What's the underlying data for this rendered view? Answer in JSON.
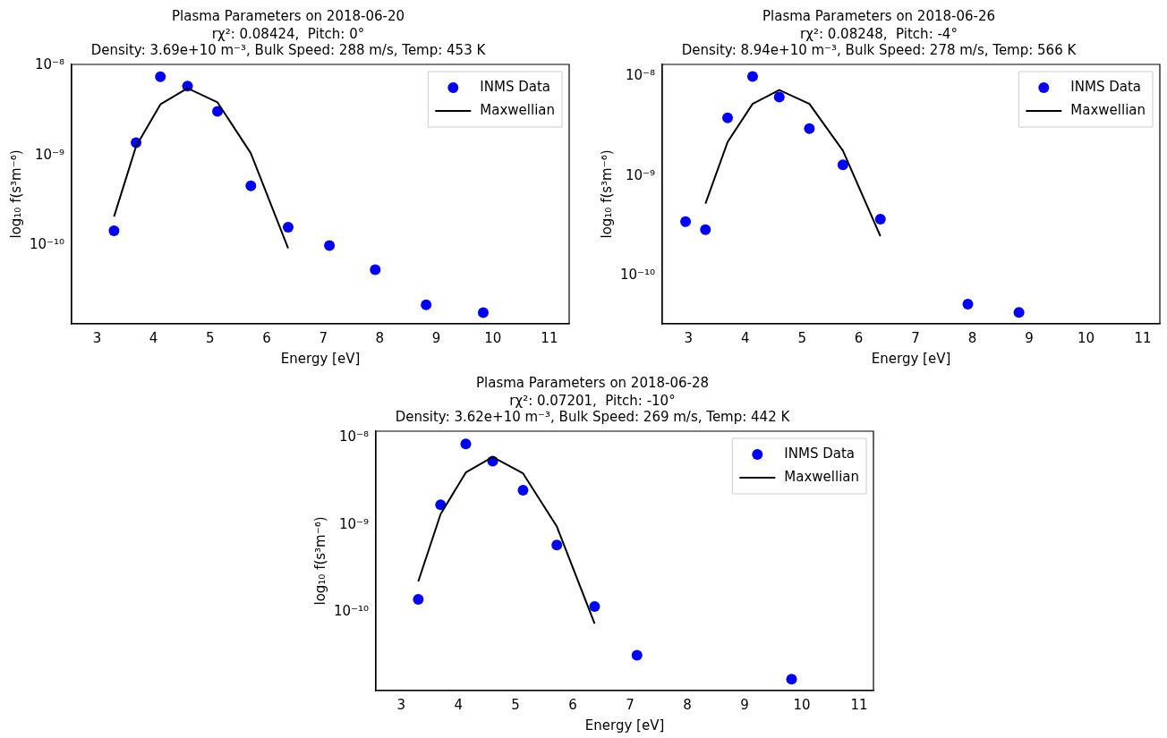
{
  "chart_data": [
    {
      "type": "scatter",
      "title": "Plasma Parameters on 2018-06-20",
      "subtitle": "rχ²: 0.08424,  Pitch: 0°\nDensity: 3.69e+10 m⁻³, Bulk Speed: 288 m/s, Temp: 453 K",
      "xlabel": "Energy [eV]",
      "ylabel": "log₁₀ f(s³m⁻⁶)",
      "log": "y",
      "legend": "top right",
      "grid": false,
      "xlim": [
        2.55,
        11.35
      ],
      "xticks": [
        3,
        4,
        5,
        6,
        7,
        8,
        9,
        10,
        11
      ],
      "ylim": [
        1.35e-11,
        1.03e-08
      ],
      "yticks": [
        {
          "value": 1e-10,
          "label": "10⁻¹⁰"
        },
        {
          "value": 1e-09,
          "label": "10⁻⁹"
        },
        {
          "value": 1e-08,
          "label": "10⁻⁸"
        }
      ],
      "series": [
        {
          "name": "INMS Data",
          "marker": "circle",
          "color": "#0000ff",
          "x": [
            3.3,
            3.69,
            4.12,
            4.6,
            5.13,
            5.72,
            6.38,
            7.11,
            7.92,
            8.82,
            9.83
          ],
          "values": [
            1.46e-10,
            1.39e-09,
            7.5e-09,
            5.9e-09,
            3.1e-09,
            4.6e-10,
            1.6e-10,
            1e-10,
            5.4e-11,
            2.2e-11,
            1.8e-11
          ]
        },
        {
          "name": "Maxwellian",
          "type": "line",
          "marker": "none",
          "color": "#000000",
          "x": [
            3.3,
            3.69,
            4.12,
            4.6,
            5.13,
            5.72,
            6.38
          ],
          "values": [
            2.1e-10,
            1.27e-09,
            3.7e-09,
            5.6e-09,
            3.9e-09,
            1.06e-09,
            9.3e-11
          ]
        }
      ]
    },
    {
      "type": "scatter",
      "title": "Plasma Parameters on 2018-06-26",
      "subtitle": "rχ²: 0.08248,  Pitch: -4°\nDensity: 8.94e+10 m⁻³, Bulk Speed: 278 m/s, Temp: 566 K",
      "xlabel": "Energy [eV]",
      "ylabel": "log₁₀ f(s³m⁻⁶)",
      "log": "y",
      "legend": "top right",
      "grid": false,
      "xlim": [
        2.54,
        11.3
      ],
      "xticks": [
        3,
        4,
        5,
        6,
        7,
        8,
        9,
        10,
        11
      ],
      "ylim": [
        3.3e-11,
        1.32e-08
      ],
      "yticks": [
        {
          "value": 1e-10,
          "label": "10⁻¹⁰"
        },
        {
          "value": 1e-09,
          "label": "10⁻⁹"
        },
        {
          "value": 1e-08,
          "label": "10⁻⁸"
        }
      ],
      "series": [
        {
          "name": "INMS Data",
          "marker": "circle",
          "color": "#0000ff",
          "x": [
            2.95,
            3.3,
            3.69,
            4.13,
            4.6,
            5.13,
            5.72,
            6.38,
            7.92,
            8.82
          ],
          "values": [
            3.5e-10,
            2.9e-10,
            3.85e-09,
            1e-08,
            6.2e-09,
            3e-09,
            1.3e-09,
            3.7e-10,
            5.2e-11,
            4.3e-11
          ]
        },
        {
          "name": "Maxwellian",
          "type": "line",
          "marker": "none",
          "color": "#000000",
          "x": [
            3.3,
            3.69,
            4.13,
            4.6,
            5.13,
            5.72,
            6.38
          ],
          "values": [
            5.3e-10,
            2.2e-09,
            5.3e-09,
            7.3e-09,
            5.3e-09,
            1.8e-09,
            2.5e-10
          ]
        }
      ]
    },
    {
      "type": "scatter",
      "title": "Plasma Parameters on 2018-06-28",
      "subtitle": "rχ²: 0.07201,  Pitch: -10°\nDensity: 3.62e+10 m⁻³, Bulk Speed: 269 m/s, Temp: 442 K",
      "xlabel": "Energy [eV]",
      "ylabel": "log₁₀ f(s³m⁻⁶)",
      "log": "y",
      "legend": "top right",
      "grid": false,
      "xlim": [
        2.56,
        11.25
      ],
      "xticks": [
        3,
        4,
        5,
        6,
        7,
        8,
        9,
        10,
        11
      ],
      "ylim": [
        1.26e-11,
        1.19e-08
      ],
      "yticks": [
        {
          "value": 1e-10,
          "label": "10⁻¹⁰"
        },
        {
          "value": 1e-09,
          "label": "10⁻⁹"
        },
        {
          "value": 1e-08,
          "label": "10⁻⁸"
        }
      ],
      "series": [
        {
          "name": "INMS Data",
          "marker": "circle",
          "color": "#0000ff",
          "x": [
            3.3,
            3.69,
            4.13,
            4.6,
            5.13,
            5.72,
            6.38,
            7.12,
            9.82
          ],
          "values": [
            1.4e-10,
            1.7e-09,
            8.5e-09,
            5.4e-09,
            2.5e-09,
            5.9e-10,
            1.16e-10,
            3.2e-11,
            1.7e-11
          ]
        },
        {
          "name": "Maxwellian",
          "type": "line",
          "marker": "none",
          "color": "#000000",
          "x": [
            3.3,
            3.69,
            4.13,
            4.6,
            5.13,
            5.72,
            6.38
          ],
          "values": [
            2.25e-10,
            1.33e-09,
            4e-09,
            6e-09,
            3.9e-09,
            9.6e-10,
            7.4e-11
          ]
        }
      ]
    }
  ]
}
